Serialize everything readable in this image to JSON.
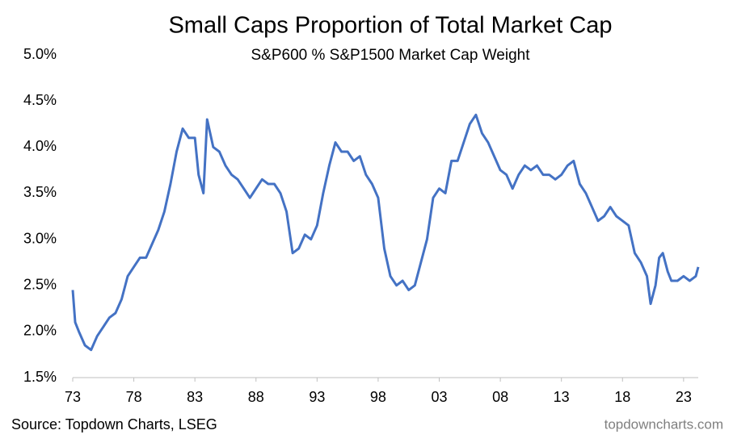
{
  "chart_data": {
    "type": "line",
    "title": "Small Caps Proportion of Total Market Cap",
    "subtitle": "S&P600 % S&P1500 Market Cap Weight",
    "source": "Source: Topdown Charts, LSEG",
    "watermark": "topdowncharts.com",
    "x": [
      1973.0,
      1973.2,
      1973.5,
      1974.0,
      1974.5,
      1975.0,
      1975.5,
      1976.0,
      1976.5,
      1977.0,
      1977.5,
      1978.0,
      1978.5,
      1979.0,
      1979.5,
      1980.0,
      1980.5,
      1981.0,
      1981.5,
      1982.0,
      1982.5,
      1983.0,
      1983.3,
      1983.7,
      1984.0,
      1984.5,
      1985.0,
      1985.5,
      1986.0,
      1986.5,
      1987.0,
      1987.5,
      1988.0,
      1988.5,
      1989.0,
      1989.5,
      1990.0,
      1990.5,
      1991.0,
      1991.5,
      1992.0,
      1992.5,
      1993.0,
      1993.5,
      1994.0,
      1994.5,
      1995.0,
      1995.5,
      1996.0,
      1996.5,
      1997.0,
      1997.5,
      1998.0,
      1998.5,
      1999.0,
      1999.5,
      2000.0,
      2000.5,
      2001.0,
      2001.5,
      2002.0,
      2002.5,
      2003.0,
      2003.5,
      2004.0,
      2004.5,
      2005.0,
      2005.5,
      2006.0,
      2006.5,
      2007.0,
      2007.5,
      2008.0,
      2008.5,
      2009.0,
      2009.5,
      2010.0,
      2010.5,
      2011.0,
      2011.5,
      2012.0,
      2012.5,
      2013.0,
      2013.5,
      2014.0,
      2014.5,
      2015.0,
      2015.5,
      2016.0,
      2016.5,
      2017.0,
      2017.5,
      2018.0,
      2018.5,
      2019.0,
      2019.5,
      2020.0,
      2020.3,
      2020.7,
      2021.0,
      2021.3,
      2021.7,
      2022.0,
      2022.5,
      2023.0,
      2023.5,
      2024.0,
      2024.2
    ],
    "series": [
      {
        "name": "S&P600 % S&P1500",
        "color": "#4472c4",
        "values": [
          2.45,
          2.1,
          2.0,
          1.85,
          1.8,
          1.95,
          2.05,
          2.15,
          2.2,
          2.35,
          2.6,
          2.7,
          2.8,
          2.8,
          2.95,
          3.1,
          3.3,
          3.6,
          3.95,
          4.2,
          4.1,
          4.1,
          3.7,
          3.5,
          4.3,
          4.0,
          3.95,
          3.8,
          3.7,
          3.65,
          3.55,
          3.45,
          3.55,
          3.65,
          3.6,
          3.6,
          3.5,
          3.3,
          2.85,
          2.9,
          3.05,
          3.0,
          3.15,
          3.5,
          3.8,
          4.05,
          3.95,
          3.95,
          3.85,
          3.9,
          3.7,
          3.6,
          3.45,
          2.9,
          2.6,
          2.5,
          2.55,
          2.45,
          2.5,
          2.75,
          3.0,
          3.45,
          3.55,
          3.5,
          3.85,
          3.85,
          4.05,
          4.25,
          4.35,
          4.15,
          4.05,
          3.9,
          3.75,
          3.7,
          3.55,
          3.7,
          3.8,
          3.75,
          3.8,
          3.7,
          3.7,
          3.65,
          3.7,
          3.8,
          3.85,
          3.6,
          3.5,
          3.35,
          3.2,
          3.25,
          3.35,
          3.25,
          3.2,
          3.15,
          2.85,
          2.75,
          2.6,
          2.3,
          2.5,
          2.8,
          2.85,
          2.65,
          2.55,
          2.55,
          2.6,
          2.55,
          2.6,
          2.7
        ]
      }
    ],
    "xlim": [
      1973,
      2024.2
    ],
    "xticks": [
      {
        "value": 1973,
        "label": "73"
      },
      {
        "value": 1978,
        "label": "78"
      },
      {
        "value": 1983,
        "label": "83"
      },
      {
        "value": 1988,
        "label": "88"
      },
      {
        "value": 1993,
        "label": "93"
      },
      {
        "value": 1998,
        "label": "98"
      },
      {
        "value": 2003,
        "label": "03"
      },
      {
        "value": 2008,
        "label": "08"
      },
      {
        "value": 2013,
        "label": "13"
      },
      {
        "value": 2018,
        "label": "18"
      },
      {
        "value": 2023,
        "label": "23"
      }
    ],
    "ylim": [
      1.5,
      5.0
    ],
    "yticks": [
      {
        "value": 1.5,
        "label": "1.5%"
      },
      {
        "value": 2.0,
        "label": "2.0%"
      },
      {
        "value": 2.5,
        "label": "2.5%"
      },
      {
        "value": 3.0,
        "label": "3.0%"
      },
      {
        "value": 3.5,
        "label": "3.5%"
      },
      {
        "value": 4.0,
        "label": "4.0%"
      },
      {
        "value": 4.5,
        "label": "4.5%"
      },
      {
        "value": 5.0,
        "label": "5.0%"
      }
    ],
    "grid": false
  }
}
